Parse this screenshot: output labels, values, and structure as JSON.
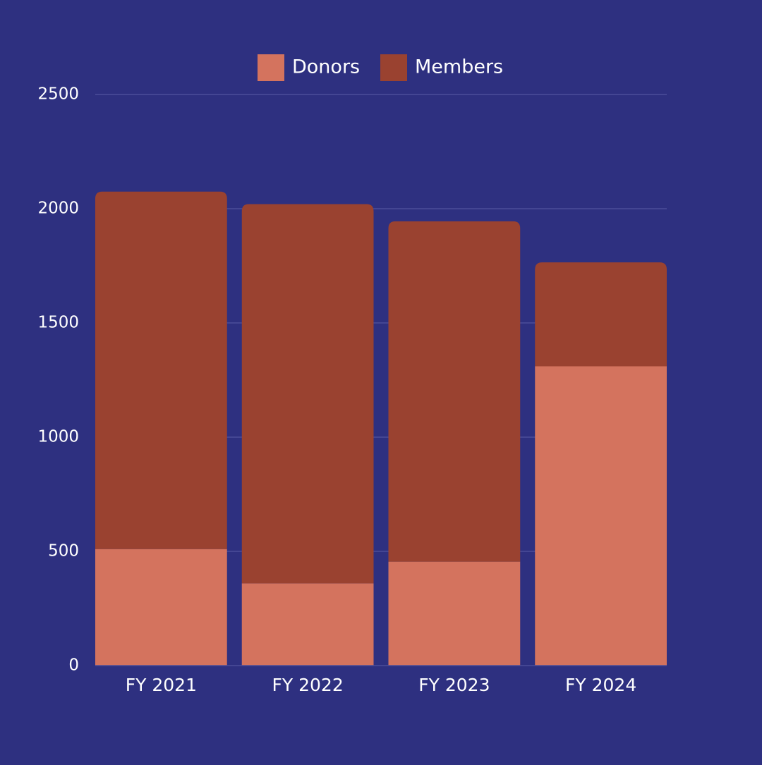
{
  "chart_data": {
    "type": "bar",
    "stacked": true,
    "categories": [
      "FY 2021",
      "FY 2022",
      "FY 2023",
      "FY 2024"
    ],
    "series": [
      {
        "name": "Donors",
        "values": [
          510,
          360,
          455,
          1310
        ],
        "color": "#d4735e"
      },
      {
        "name": "Members",
        "values": [
          1565,
          1660,
          1490,
          455
        ],
        "color": "#9a4230"
      }
    ],
    "ylim": [
      0,
      2500
    ],
    "yticks": [
      0,
      500,
      1000,
      1500,
      2000,
      2500
    ],
    "grid": true,
    "legend_position": "top-center",
    "background": "#2e3080",
    "grid_color": "#4b4d99",
    "text_color": "#ffffff"
  }
}
